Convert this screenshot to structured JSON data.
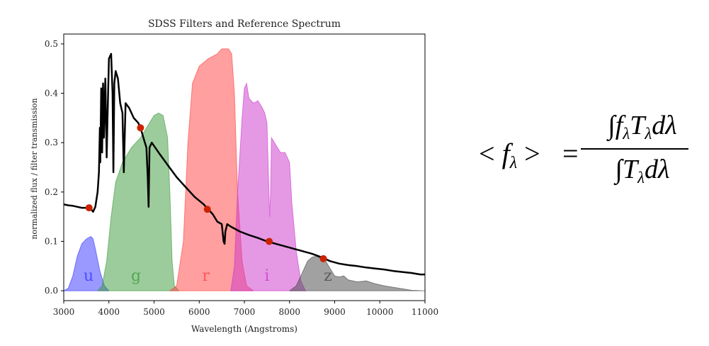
{
  "chart_data": {
    "type": "area",
    "title": "SDSS Filters and Reference Spectrum",
    "xlabel": "Wavelength (Angstroms)",
    "ylabel": "normalized flux / filter transmission",
    "xlim": [
      3000,
      11000
    ],
    "ylim": [
      -0.02,
      0.52
    ],
    "xticks": [
      3000,
      4000,
      5000,
      6000,
      7000,
      8000,
      9000,
      10000,
      11000
    ],
    "yticks": [
      0.0,
      0.1,
      0.2,
      0.3,
      0.4,
      0.5
    ],
    "xtick_labels": [
      "3000",
      "4000",
      "5000",
      "6000",
      "7000",
      "8000",
      "9000",
      "10000",
      "11000"
    ],
    "ytick_labels": [
      "0.0",
      "0.1",
      "0.2",
      "0.3",
      "0.4",
      "0.5"
    ],
    "grid": false,
    "filters": [
      {
        "name": "u",
        "color": "#3333ff",
        "label_pos": [
          3550,
          0.02
        ],
        "points": [
          [
            3000,
            0
          ],
          [
            3100,
            0.005
          ],
          [
            3200,
            0.03
          ],
          [
            3300,
            0.07
          ],
          [
            3400,
            0.095
          ],
          [
            3500,
            0.105
          ],
          [
            3600,
            0.11
          ],
          [
            3650,
            0.105
          ],
          [
            3700,
            0.085
          ],
          [
            3800,
            0.04
          ],
          [
            3900,
            0.01
          ],
          [
            4000,
            0
          ]
        ]
      },
      {
        "name": "g",
        "color": "#3a9a3a",
        "label_pos": [
          4600,
          0.02
        ],
        "points": [
          [
            3750,
            0
          ],
          [
            3850,
            0.01
          ],
          [
            3950,
            0.06
          ],
          [
            4050,
            0.15
          ],
          [
            4150,
            0.22
          ],
          [
            4300,
            0.26
          ],
          [
            4500,
            0.29
          ],
          [
            4700,
            0.31
          ],
          [
            4900,
            0.34
          ],
          [
            5000,
            0.355
          ],
          [
            5100,
            0.36
          ],
          [
            5200,
            0.355
          ],
          [
            5300,
            0.31
          ],
          [
            5350,
            0.2
          ],
          [
            5400,
            0.06
          ],
          [
            5450,
            0.01
          ],
          [
            5550,
            0
          ]
        ]
      },
      {
        "name": "r",
        "color": "#ff4040",
        "label_pos": [
          6150,
          0.02
        ],
        "points": [
          [
            5350,
            0
          ],
          [
            5500,
            0.01
          ],
          [
            5650,
            0.1
          ],
          [
            5750,
            0.3
          ],
          [
            5850,
            0.42
          ],
          [
            6000,
            0.455
          ],
          [
            6200,
            0.47
          ],
          [
            6400,
            0.48
          ],
          [
            6500,
            0.49
          ],
          [
            6650,
            0.49
          ],
          [
            6720,
            0.48
          ],
          [
            6780,
            0.4
          ],
          [
            6850,
            0.2
          ],
          [
            6950,
            0.06
          ],
          [
            7050,
            0.01
          ],
          [
            7200,
            0
          ]
        ]
      },
      {
        "name": "i",
        "color": "#cc33cc",
        "label_pos": [
          7500,
          0.02
        ],
        "points": [
          [
            6700,
            0
          ],
          [
            6780,
            0.05
          ],
          [
            6850,
            0.2
          ],
          [
            6950,
            0.35
          ],
          [
            7000,
            0.41
          ],
          [
            7050,
            0.42
          ],
          [
            7100,
            0.39
          ],
          [
            7200,
            0.38
          ],
          [
            7300,
            0.385
          ],
          [
            7400,
            0.37
          ],
          [
            7450,
            0.36
          ],
          [
            7500,
            0.34
          ],
          [
            7560,
            0.15
          ],
          [
            7580,
            0.2
          ],
          [
            7600,
            0.31
          ],
          [
            7700,
            0.295
          ],
          [
            7800,
            0.28
          ],
          [
            7900,
            0.28
          ],
          [
            8000,
            0.26
          ],
          [
            8050,
            0.18
          ],
          [
            8150,
            0.08
          ],
          [
            8250,
            0.02
          ],
          [
            8350,
            0
          ]
        ]
      },
      {
        "name": "z",
        "color": "#444444",
        "label_pos": [
          8850,
          0.02
        ],
        "points": [
          [
            8000,
            0
          ],
          [
            8150,
            0.01
          ],
          [
            8300,
            0.04
          ],
          [
            8400,
            0.06
          ],
          [
            8500,
            0.068
          ],
          [
            8600,
            0.07
          ],
          [
            8700,
            0.065
          ],
          [
            8800,
            0.06
          ],
          [
            8900,
            0.045
          ],
          [
            9000,
            0.03
          ],
          [
            9100,
            0.028
          ],
          [
            9200,
            0.03
          ],
          [
            9300,
            0.022
          ],
          [
            9500,
            0.018
          ],
          [
            9700,
            0.02
          ],
          [
            9900,
            0.014
          ],
          [
            10100,
            0.01
          ],
          [
            10300,
            0.007
          ],
          [
            10500,
            0.004
          ],
          [
            10700,
            0.001
          ],
          [
            11000,
            0
          ]
        ]
      }
    ],
    "spectrum": {
      "color": "#000000",
      "points": [
        [
          3000,
          0.175
        ],
        [
          3100,
          0.173
        ],
        [
          3200,
          0.172
        ],
        [
          3300,
          0.17
        ],
        [
          3400,
          0.168
        ],
        [
          3500,
          0.168
        ],
        [
          3600,
          0.166
        ],
        [
          3650,
          0.16
        ],
        [
          3700,
          0.17
        ],
        [
          3750,
          0.2
        ],
        [
          3780,
          0.24
        ],
        [
          3800,
          0.33
        ],
        [
          3810,
          0.26
        ],
        [
          3830,
          0.41
        ],
        [
          3850,
          0.28
        ],
        [
          3870,
          0.42
        ],
        [
          3890,
          0.31
        ],
        [
          3920,
          0.43
        ],
        [
          3950,
          0.27
        ],
        [
          3970,
          0.35
        ],
        [
          4000,
          0.47
        ],
        [
          4050,
          0.48
        ],
        [
          4080,
          0.4
        ],
        [
          4100,
          0.24
        ],
        [
          4120,
          0.42
        ],
        [
          4150,
          0.445
        ],
        [
          4200,
          0.43
        ],
        [
          4250,
          0.38
        ],
        [
          4300,
          0.36
        ],
        [
          4330,
          0.24
        ],
        [
          4370,
          0.38
        ],
        [
          4450,
          0.37
        ],
        [
          4550,
          0.35
        ],
        [
          4650,
          0.34
        ],
        [
          4700,
          0.33
        ],
        [
          4780,
          0.305
        ],
        [
          4830,
          0.29
        ],
        [
          4860,
          0.23
        ],
        [
          4880,
          0.17
        ],
        [
          4900,
          0.29
        ],
        [
          4950,
          0.3
        ],
        [
          5100,
          0.28
        ],
        [
          5300,
          0.255
        ],
        [
          5500,
          0.23
        ],
        [
          5700,
          0.21
        ],
        [
          5900,
          0.19
        ],
        [
          6100,
          0.175
        ],
        [
          6200,
          0.165
        ],
        [
          6300,
          0.155
        ],
        [
          6400,
          0.14
        ],
        [
          6500,
          0.135
        ],
        [
          6540,
          0.1
        ],
        [
          6563,
          0.095
        ],
        [
          6580,
          0.12
        ],
        [
          6620,
          0.135
        ],
        [
          6700,
          0.13
        ],
        [
          6900,
          0.12
        ],
        [
          7100,
          0.113
        ],
        [
          7300,
          0.107
        ],
        [
          7500,
          0.1
        ],
        [
          7700,
          0.095
        ],
        [
          7900,
          0.09
        ],
        [
          8100,
          0.085
        ],
        [
          8300,
          0.08
        ],
        [
          8500,
          0.075
        ],
        [
          8700,
          0.068
        ],
        [
          8900,
          0.06
        ],
        [
          9100,
          0.055
        ],
        [
          9300,
          0.052
        ],
        [
          9500,
          0.05
        ],
        [
          9700,
          0.047
        ],
        [
          9900,
          0.045
        ],
        [
          10100,
          0.043
        ],
        [
          10300,
          0.04
        ],
        [
          10500,
          0.038
        ],
        [
          10700,
          0.036
        ],
        [
          10900,
          0.033
        ],
        [
          11000,
          0.033
        ]
      ]
    },
    "averages": {
      "color": "#cc2200",
      "points": [
        [
          3560,
          0.168
        ],
        [
          4700,
          0.33
        ],
        [
          6180,
          0.165
        ],
        [
          7550,
          0.1
        ],
        [
          8750,
          0.065
        ]
      ]
    }
  },
  "formula": {
    "lhs_open": "<",
    "lhs_f": "f",
    "lhs_sub": "λ",
    "lhs_close": ">",
    "equals": "=",
    "num_int": "∫",
    "num_f": "f",
    "num_f_sub": "λ",
    "num_t": "T",
    "num_t_sub": "λ",
    "num_d": "dλ",
    "den_int": "∫",
    "den_t": "T",
    "den_t_sub": "λ",
    "den_d": "dλ"
  }
}
